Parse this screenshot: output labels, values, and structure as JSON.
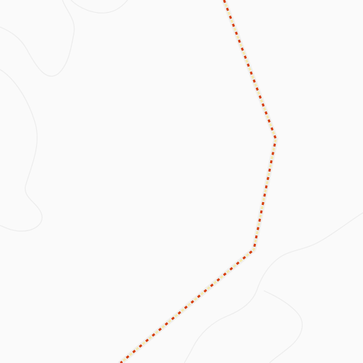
{
  "map": {
    "colors": {
      "background": "#fafafa",
      "contour": "#ececec",
      "route_casing": "#efefef",
      "route_dash_primary": "#d63a00",
      "route_dash_secondary": "#f6e9a8"
    },
    "features": [
      {
        "kind": "contour-lines",
        "count": 5
      },
      {
        "kind": "dashed-route",
        "style": "red-yellow dashed trail on light casing"
      }
    ]
  }
}
